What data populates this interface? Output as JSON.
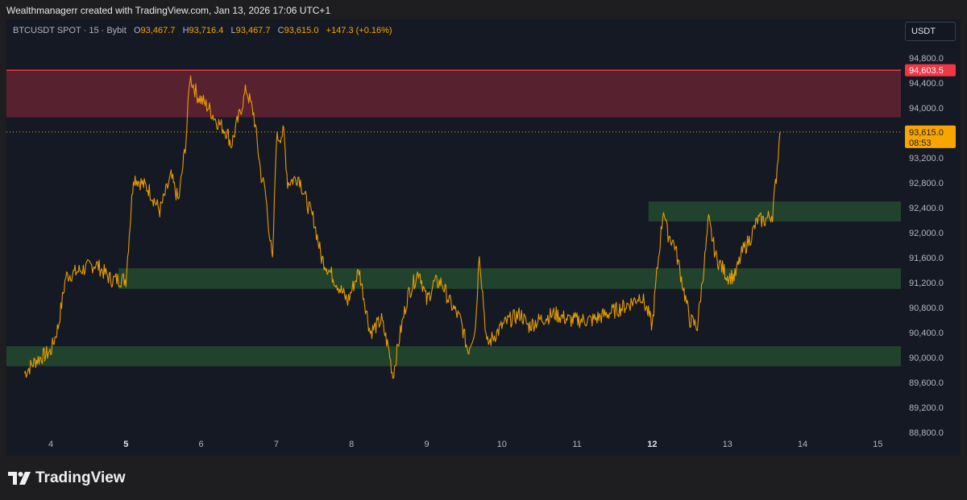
{
  "header": {
    "credit": "Wealthmanagerr created with TradingView.com, Jan 13, 2026 17:06 UTC+1"
  },
  "legend": {
    "symbol": "BTCUSDT SPOT · 15 · Bybit",
    "o_label": "O",
    "o": "93,467.7",
    "h_label": "H",
    "h": "93,716.4",
    "l_label": "L",
    "l": "93,467.7",
    "c_label": "C",
    "c": "93,615.0",
    "change": "+147.3 (+0.16%)"
  },
  "currency_button": "USDT",
  "footer": {
    "brand": "TradingView"
  },
  "colors": {
    "background": "#151924",
    "price_line": "#f7a600",
    "resistance_zone": "#5c2230",
    "support_zone": "#234a2e",
    "resistance_line": "#f23645",
    "current_price_tag": "#f7a600",
    "resistance_tag": "#f23645"
  },
  "chart_data": {
    "type": "line",
    "symbol": "BTCUSDT",
    "ylim": [
      88700,
      95000
    ],
    "y_ticks": [
      "94,800.0",
      "94,400.0",
      "94,000.0",
      "93,200.0",
      "92,800.0",
      "92,400.0",
      "92,000.0",
      "91,600.0",
      "91,200.0",
      "90,800.0",
      "90,400.0",
      "90,000.0",
      "89,600.0",
      "89,200.0",
      "88,800.0"
    ],
    "y_tick_values": [
      94800,
      94400,
      94000,
      93200,
      92800,
      92400,
      92000,
      91600,
      91200,
      90800,
      90400,
      90000,
      89600,
      89200,
      88800
    ],
    "x_ticks": [
      "4",
      "5",
      "6",
      "7",
      "8",
      "9",
      "10",
      "11",
      "12",
      "13",
      "14",
      "15"
    ],
    "x_tick_values": [
      4,
      5,
      6,
      7,
      8,
      9,
      10,
      11,
      12,
      13,
      14,
      15
    ],
    "x_bold_ticks": [
      "5",
      "12"
    ],
    "xlim": [
      3.6,
      15.4
    ],
    "grid": false,
    "series": [
      {
        "values": [
          [
            3.65,
            89750
          ],
          [
            3.8,
            89950
          ],
          [
            4.0,
            90100
          ],
          [
            4.1,
            90500
          ],
          [
            4.2,
            91300
          ],
          [
            4.4,
            91400
          ],
          [
            4.6,
            91500
          ],
          [
            4.8,
            91250
          ],
          [
            5.0,
            91250
          ],
          [
            5.1,
            92900
          ],
          [
            5.3,
            92700
          ],
          [
            5.45,
            92350
          ],
          [
            5.6,
            92900
          ],
          [
            5.7,
            92500
          ],
          [
            5.8,
            93500
          ],
          [
            5.85,
            94500
          ],
          [
            5.95,
            94200
          ],
          [
            6.1,
            94000
          ],
          [
            6.2,
            93800
          ],
          [
            6.35,
            93600
          ],
          [
            6.4,
            93400
          ],
          [
            6.6,
            94300
          ],
          [
            6.7,
            93900
          ],
          [
            6.8,
            92900
          ],
          [
            6.85,
            92700
          ],
          [
            6.95,
            91500
          ],
          [
            7.0,
            93500
          ],
          [
            7.1,
            93600
          ],
          [
            7.15,
            92800
          ],
          [
            7.3,
            92900
          ],
          [
            7.4,
            92500
          ],
          [
            7.5,
            92200
          ],
          [
            7.6,
            91600
          ],
          [
            7.8,
            91200
          ],
          [
            7.95,
            90900
          ],
          [
            8.1,
            91400
          ],
          [
            8.25,
            90400
          ],
          [
            8.4,
            90600
          ],
          [
            8.5,
            90100
          ],
          [
            8.55,
            89700
          ],
          [
            8.65,
            90400
          ],
          [
            8.75,
            91000
          ],
          [
            8.9,
            91400
          ],
          [
            9.0,
            90900
          ],
          [
            9.1,
            91200
          ],
          [
            9.2,
            91200
          ],
          [
            9.3,
            90900
          ],
          [
            9.45,
            90600
          ],
          [
            9.55,
            90100
          ],
          [
            9.65,
            90500
          ],
          [
            9.7,
            91700
          ],
          [
            9.8,
            90200
          ],
          [
            10.0,
            90500
          ],
          [
            10.1,
            90600
          ],
          [
            10.25,
            90700
          ],
          [
            10.35,
            90500
          ],
          [
            10.5,
            90600
          ],
          [
            10.7,
            90700
          ],
          [
            10.9,
            90600
          ],
          [
            11.2,
            90600
          ],
          [
            11.4,
            90700
          ],
          [
            11.6,
            90800
          ],
          [
            11.75,
            90900
          ],
          [
            11.85,
            91000
          ],
          [
            11.95,
            90700
          ],
          [
            12.0,
            90500
          ],
          [
            12.05,
            91200
          ],
          [
            12.15,
            92400
          ],
          [
            12.2,
            92000
          ],
          [
            12.3,
            91800
          ],
          [
            12.4,
            91200
          ],
          [
            12.5,
            90600
          ],
          [
            12.6,
            90500
          ],
          [
            12.7,
            91600
          ],
          [
            12.75,
            92200
          ],
          [
            12.85,
            91600
          ],
          [
            13.0,
            91300
          ],
          [
            13.1,
            91300
          ],
          [
            13.2,
            91700
          ],
          [
            13.3,
            91900
          ],
          [
            13.4,
            92200
          ],
          [
            13.5,
            92200
          ],
          [
            13.6,
            92300
          ],
          [
            13.65,
            92900
          ],
          [
            13.7,
            93615
          ]
        ]
      }
    ],
    "zones": [
      {
        "type": "resistance",
        "from": 93850,
        "to": 94603.5
      },
      {
        "type": "support",
        "from": 92180,
        "to": 92500
      },
      {
        "type": "support",
        "from": 91100,
        "to": 91430
      },
      {
        "type": "support",
        "from": 89860,
        "to": 90180
      }
    ],
    "resistance_line": {
      "price": 94603.5,
      "label": "94,603.5"
    },
    "current_price": {
      "price": 93615.0,
      "label": "93,615.0",
      "countdown": "08:53"
    }
  }
}
